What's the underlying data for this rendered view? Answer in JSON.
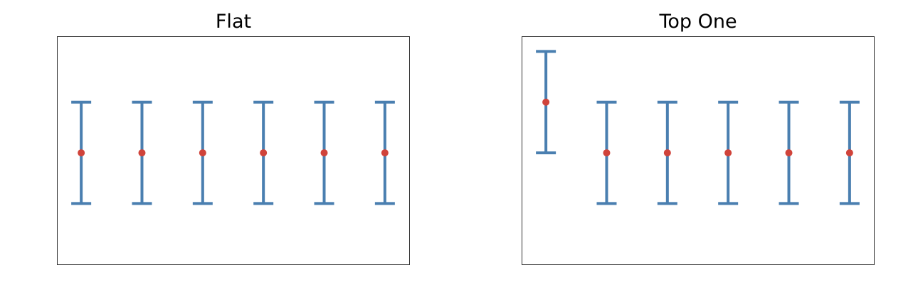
{
  "figure": {
    "background": "#ffffff",
    "frame_color": "#333333",
    "bar_color": "#4a7fb0",
    "point_color": "#d0433a"
  },
  "chart_data": [
    {
      "type": "errorbar",
      "title": "Flat",
      "xlabel": "",
      "ylabel": "",
      "x": [
        1,
        2,
        3,
        4,
        5,
        6
      ],
      "y": [
        0,
        0,
        0,
        0,
        0,
        0
      ],
      "yerr": [
        1,
        1,
        1,
        1,
        1,
        1
      ],
      "xlim": [
        0.6,
        6.4
      ],
      "ylim": [
        -2.2,
        2.3
      ],
      "axis_ticks": false,
      "grid": false,
      "legend": "none"
    },
    {
      "type": "errorbar",
      "title": "Top One",
      "xlabel": "",
      "ylabel": "",
      "x": [
        1,
        2,
        3,
        4,
        5,
        6
      ],
      "y": [
        1,
        0,
        0,
        0,
        0,
        0
      ],
      "yerr": [
        1,
        1,
        1,
        1,
        1,
        1
      ],
      "xlim": [
        0.6,
        6.4
      ],
      "ylim": [
        -2.2,
        2.3
      ],
      "axis_ticks": false,
      "grid": false,
      "legend": "none"
    }
  ]
}
